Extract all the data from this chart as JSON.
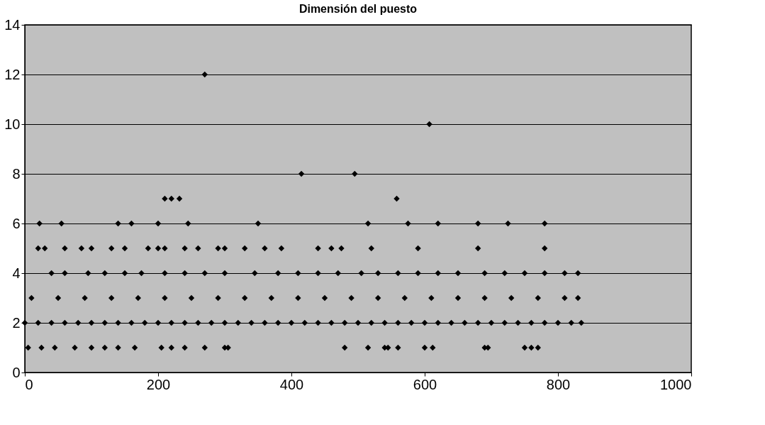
{
  "chart_data": {
    "type": "scatter",
    "title": "Dimensión del puesto",
    "series": [
      {
        "color": "#000000",
        "x": [
          5,
          25,
          45,
          75,
          100,
          120,
          140,
          165,
          205,
          220,
          240,
          270,
          300,
          305,
          480,
          515,
          540,
          545,
          560,
          600,
          612,
          690,
          695,
          750,
          760,
          770,
          0,
          20,
          40,
          60,
          80,
          100,
          120,
          140,
          160,
          180,
          200,
          220,
          240,
          260,
          280,
          300,
          320,
          340,
          360,
          380,
          400,
          420,
          440,
          460,
          480,
          500,
          520,
          540,
          560,
          580,
          600,
          620,
          640,
          660,
          680,
          700,
          720,
          740,
          760,
          780,
          800,
          820,
          835,
          10,
          50,
          90,
          130,
          170,
          210,
          250,
          290,
          330,
          370,
          410,
          450,
          490,
          530,
          570,
          610,
          650,
          690,
          730,
          770,
          810,
          830,
          40,
          60,
          95,
          120,
          150,
          175,
          210,
          240,
          270,
          300,
          345,
          380,
          410,
          440,
          470,
          505,
          530,
          560,
          590,
          620,
          650,
          690,
          720,
          750,
          780,
          810,
          830,
          20,
          30,
          60,
          85,
          100,
          130,
          150,
          185,
          200,
          210,
          240,
          260,
          290,
          300,
          330,
          360,
          385,
          440,
          460,
          475,
          520,
          590,
          680,
          780,
          22,
          55,
          140,
          160,
          200,
          245,
          350,
          515,
          575,
          620,
          680,
          725,
          780,
          210,
          220,
          232,
          558,
          415,
          495,
          607,
          270
        ],
        "values": [
          1,
          1,
          1,
          1,
          1,
          1,
          1,
          1,
          1,
          1,
          1,
          1,
          1,
          1,
          1,
          1,
          1,
          1,
          1,
          1,
          1,
          1,
          1,
          1,
          1,
          1,
          2,
          2,
          2,
          2,
          2,
          2,
          2,
          2,
          2,
          2,
          2,
          2,
          2,
          2,
          2,
          2,
          2,
          2,
          2,
          2,
          2,
          2,
          2,
          2,
          2,
          2,
          2,
          2,
          2,
          2,
          2,
          2,
          2,
          2,
          2,
          2,
          2,
          2,
          2,
          2,
          2,
          2,
          2,
          3,
          3,
          3,
          3,
          3,
          3,
          3,
          3,
          3,
          3,
          3,
          3,
          3,
          3,
          3,
          3,
          3,
          3,
          3,
          3,
          3,
          3,
          4,
          4,
          4,
          4,
          4,
          4,
          4,
          4,
          4,
          4,
          4,
          4,
          4,
          4,
          4,
          4,
          4,
          4,
          4,
          4,
          4,
          4,
          4,
          4,
          4,
          4,
          4,
          5,
          5,
          5,
          5,
          5,
          5,
          5,
          5,
          5,
          5,
          5,
          5,
          5,
          5,
          5,
          5,
          5,
          5,
          5,
          5,
          5,
          5,
          5,
          5,
          6,
          6,
          6,
          6,
          6,
          6,
          6,
          6,
          6,
          6,
          6,
          6,
          6,
          7,
          7,
          7,
          7,
          8,
          8,
          10,
          12
        ]
      }
    ],
    "xlim": [
      0,
      1000
    ],
    "xticks": [
      0,
      200,
      400,
      600,
      800,
      1000
    ],
    "ylim": [
      0,
      14
    ],
    "yticks": [
      0,
      2,
      4,
      6,
      8,
      10,
      12,
      14
    ],
    "marker": "diamond",
    "grid": "y",
    "legend": false
  }
}
